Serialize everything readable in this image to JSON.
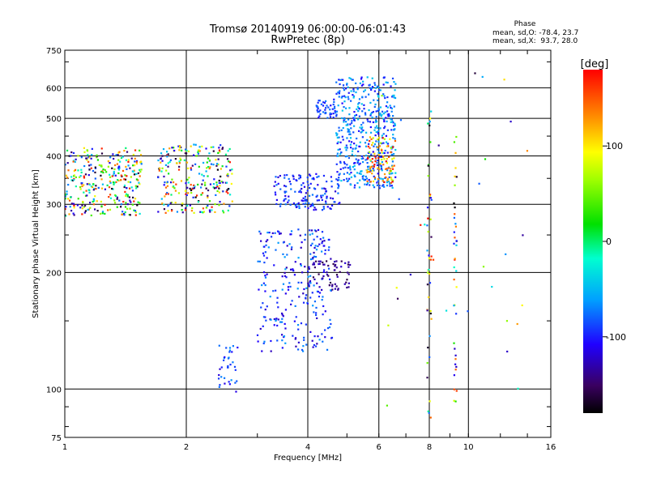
{
  "chart_data": {
    "type": "scatter",
    "title": "Tromsø 20140919 06:00:00-06:01:43",
    "subtitle": "RwPretec (8p)",
    "xlabel": "Frequency [MHz]",
    "ylabel": "Stationary phase Virtual Height [km]",
    "xscale": "log",
    "yscale": "log",
    "xlim": [
      1,
      16
    ],
    "ylim": [
      75,
      750
    ],
    "x_ticks": [
      1,
      2,
      4,
      6,
      8,
      10,
      16
    ],
    "x_tick_labels": [
      "1",
      "2",
      "4",
      "6",
      "8",
      "10",
      "16"
    ],
    "y_ticks": [
      75,
      100,
      200,
      300,
      400,
      500,
      600,
      750
    ],
    "y_tick_labels": [
      "75",
      "100",
      "200",
      "300",
      "400",
      "500",
      "600",
      "750"
    ],
    "grid": true,
    "phase_box": {
      "heading": "Phase",
      "line_o": "mean, sd,O: -78.4, 23.7",
      "line_x": "mean, sd,X:  93.7, 28.0"
    },
    "colorbar": {
      "label": "[deg]",
      "min": -180,
      "max": 180,
      "ticks": [
        100,
        0,
        -100
      ],
      "tick_labels": [
        "100",
        "0",
        "-100"
      ],
      "colormap": "rainbow"
    },
    "clusters": [
      {
        "x": [
          1.0,
          1.55
        ],
        "y": [
          280,
          420
        ],
        "n": 320,
        "phase": [
          -180,
          180
        ]
      },
      {
        "x": [
          1.7,
          2.6
        ],
        "y": [
          285,
          430
        ],
        "n": 260,
        "phase": [
          -180,
          180
        ]
      },
      {
        "x": [
          2.4,
          2.7
        ],
        "y": [
          98,
          130
        ],
        "n": 35,
        "phase": [
          -120,
          -60
        ]
      },
      {
        "x": [
          3.0,
          4.6
        ],
        "y": [
          125,
          260
        ],
        "n": 260,
        "phase": [
          -130,
          -60
        ]
      },
      {
        "x": [
          4.0,
          5.1
        ],
        "y": [
          180,
          215
        ],
        "n": 60,
        "phase": [
          -160,
          -120
        ]
      },
      {
        "x": [
          3.3,
          4.8
        ],
        "y": [
          290,
          360
        ],
        "n": 140,
        "phase": [
          -120,
          -70
        ]
      },
      {
        "x": [
          4.2,
          4.7
        ],
        "y": [
          500,
          560
        ],
        "n": 45,
        "phase": [
          -110,
          -70
        ]
      },
      {
        "x": [
          4.7,
          6.6
        ],
        "y": [
          330,
          640
        ],
        "n": 480,
        "phase": [
          -110,
          -40
        ]
      },
      {
        "x": [
          5.6,
          6.6
        ],
        "y": [
          340,
          450
        ],
        "n": 90,
        "phase": [
          60,
          180
        ]
      },
      {
        "x": [
          7.9,
          8.1
        ],
        "y": [
          80,
          600
        ],
        "n": 45,
        "phase": [
          -180,
          180
        ]
      },
      {
        "x": [
          9.2,
          9.35
        ],
        "y": [
          80,
          500
        ],
        "n": 40,
        "phase": [
          -180,
          180
        ]
      },
      {
        "x": [
          6.1,
          14.0
        ],
        "y": [
          90,
          660
        ],
        "n": 30,
        "phase": [
          -180,
          180
        ]
      }
    ]
  }
}
